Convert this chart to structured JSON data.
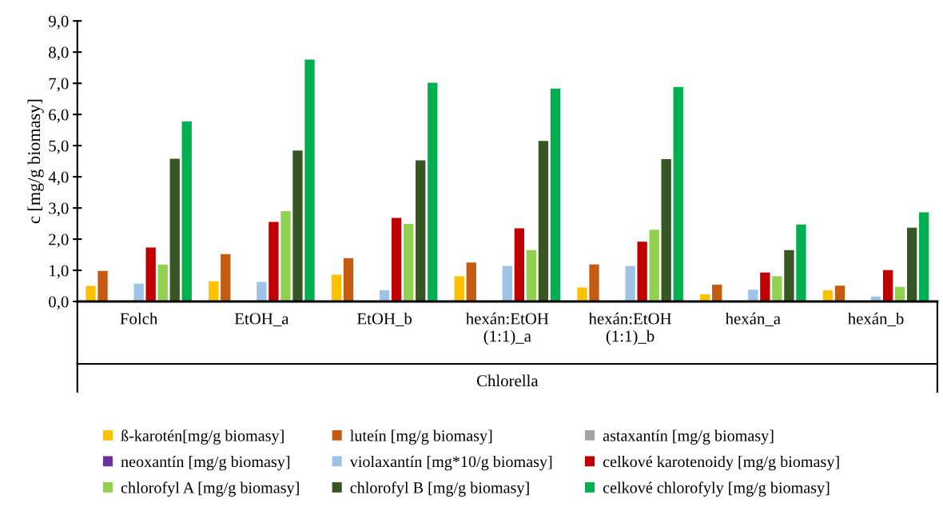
{
  "chart_data": {
    "type": "bar",
    "xlabel": "Chlorella",
    "ylabel": "c [mg/g biomasy]",
    "categories": [
      "Folch",
      "EtOH_a",
      "EtOH_b",
      "hexán:EtOH\n(1:1)_a",
      "hexán:EtOH\n(1:1)_b",
      "hexán_a",
      "hexán_b"
    ],
    "series": [
      {
        "name": "ß-karotén[mg/g biomasy]",
        "color": "#ffc000",
        "values": [
          0.5,
          0.65,
          0.86,
          0.81,
          0.45,
          0.23,
          0.36
        ]
      },
      {
        "name": "luteín [mg/g biomasy]",
        "color": "#c55a11",
        "values": [
          0.98,
          1.52,
          1.39,
          1.25,
          1.19,
          0.54,
          0.51
        ]
      },
      {
        "name": "astaxantín [mg/g biomasy]",
        "color": "#a5a5a5",
        "values": [
          0,
          0,
          0,
          0,
          0,
          0,
          0
        ]
      },
      {
        "name": "neoxantín [mg/g biomasy]",
        "color": "#7030a0",
        "values": [
          0,
          0,
          0,
          0,
          0,
          0,
          0
        ]
      },
      {
        "name": "violaxantín [mg*10/g biomasy]",
        "color": "#9dc3e6",
        "values": [
          0.57,
          0.63,
          0.36,
          1.14,
          1.14,
          0.38,
          0.16
        ]
      },
      {
        "name": "celkové karotenoidy [mg/g biomasy]",
        "color": "#c00000",
        "values": [
          1.73,
          2.55,
          2.68,
          2.35,
          1.92,
          0.93,
          1.01
        ]
      },
      {
        "name": "chlorofyl A [mg/g biomasy]",
        "color": "#92d050",
        "values": [
          1.19,
          2.9,
          2.49,
          1.65,
          2.3,
          0.81,
          0.47
        ]
      },
      {
        "name": "chlorofyl B [mg/g biomasy]",
        "color": "#375623",
        "values": [
          4.58,
          4.84,
          4.53,
          5.15,
          4.57,
          1.65,
          2.37
        ]
      },
      {
        "name": "celkové chlorofyly [mg/g biomasy]",
        "color": "#00b050",
        "values": [
          5.78,
          7.76,
          7.02,
          6.83,
          6.88,
          2.47,
          2.86
        ]
      }
    ],
    "ylim": [
      0,
      9
    ],
    "yticks": [
      {
        "value": 0,
        "label": "0,0"
      },
      {
        "value": 1,
        "label": "1,0"
      },
      {
        "value": 2,
        "label": "2,0"
      },
      {
        "value": 3,
        "label": "3,0"
      },
      {
        "value": 4,
        "label": "4,0"
      },
      {
        "value": 5,
        "label": "5,0"
      },
      {
        "value": 6,
        "label": "6,0"
      },
      {
        "value": 7,
        "label": "7,0"
      },
      {
        "value": 8,
        "label": "8,0"
      },
      {
        "value": 9,
        "label": "9,0"
      }
    ],
    "grid": false,
    "legend": "bottom"
  }
}
